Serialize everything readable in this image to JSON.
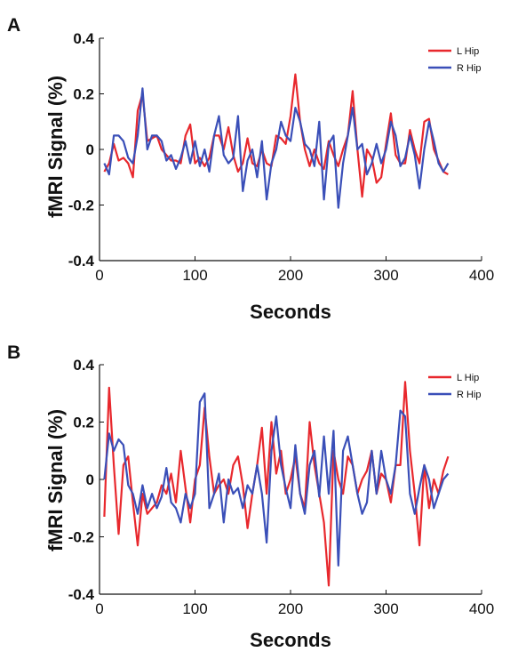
{
  "chart_data": [
    {
      "panel": "A",
      "type": "line",
      "xlabel": "Seconds",
      "ylabel": "fMRI Signal (%)",
      "xlim": [
        0,
        400
      ],
      "ylim": [
        -0.4,
        0.4
      ],
      "xticks": [
        "0",
        "100",
        "200",
        "300",
        "400"
      ],
      "yticks": [
        "-0.4",
        "-0.2",
        "0",
        "0.2",
        "0.4"
      ],
      "grid": false,
      "legend_position": "top-right",
      "x": [
        5,
        10,
        15,
        20,
        25,
        30,
        35,
        40,
        45,
        50,
        55,
        60,
        65,
        70,
        75,
        80,
        85,
        90,
        95,
        100,
        105,
        110,
        115,
        120,
        125,
        130,
        135,
        140,
        145,
        150,
        155,
        160,
        165,
        170,
        175,
        180,
        185,
        190,
        195,
        200,
        205,
        210,
        215,
        220,
        225,
        230,
        235,
        240,
        245,
        250,
        255,
        260,
        265,
        270,
        275,
        280,
        285,
        290,
        295,
        300,
        305,
        310,
        315,
        320,
        325,
        330,
        335,
        340,
        345,
        350,
        355,
        360,
        365
      ],
      "series": [
        {
          "name": "L Hip",
          "color": "#e8282d",
          "values": [
            -0.08,
            -0.05,
            0.02,
            -0.04,
            -0.03,
            -0.05,
            -0.1,
            0.14,
            0.2,
            0.03,
            0.04,
            0.05,
            0.0,
            -0.02,
            -0.04,
            -0.04,
            -0.05,
            0.05,
            0.09,
            -0.05,
            -0.03,
            -0.06,
            -0.03,
            0.05,
            0.05,
            0.0,
            0.08,
            -0.02,
            -0.08,
            -0.05,
            0.04,
            -0.05,
            -0.06,
            0.0,
            -0.05,
            -0.06,
            0.05,
            0.04,
            0.02,
            0.12,
            0.27,
            0.1,
            0.0,
            -0.06,
            0.0,
            -0.05,
            -0.07,
            0.03,
            -0.02,
            -0.06,
            0.0,
            0.05,
            0.21,
            0.0,
            -0.17,
            0.0,
            -0.03,
            -0.12,
            -0.1,
            0.02,
            0.13,
            -0.02,
            -0.05,
            -0.05,
            0.07,
            0.0,
            -0.05,
            0.1,
            0.11,
            0.0,
            -0.04,
            -0.08,
            -0.09
          ]
        },
        {
          "name": "R Hip",
          "color": "#3a4fb8",
          "values": [
            -0.05,
            -0.09,
            0.05,
            0.05,
            0.03,
            -0.03,
            -0.05,
            0.05,
            0.22,
            0.0,
            0.05,
            0.05,
            0.03,
            -0.04,
            -0.02,
            -0.07,
            -0.03,
            0.03,
            -0.05,
            0.03,
            -0.06,
            0.0,
            -0.08,
            0.05,
            0.12,
            -0.02,
            -0.05,
            -0.03,
            0.12,
            -0.15,
            -0.04,
            0.0,
            -0.1,
            0.03,
            -0.18,
            -0.05,
            0.0,
            0.1,
            0.05,
            0.03,
            0.15,
            0.1,
            0.02,
            0.0,
            -0.06,
            0.1,
            -0.18,
            0.02,
            0.05,
            -0.21,
            -0.05,
            0.05,
            0.15,
            0.0,
            0.02,
            -0.09,
            -0.05,
            0.02,
            -0.05,
            0.0,
            0.1,
            0.05,
            -0.06,
            -0.03,
            0.05,
            -0.02,
            -0.14,
            0.0,
            0.1,
            0.03,
            -0.05,
            -0.08,
            -0.05
          ]
        }
      ]
    },
    {
      "panel": "B",
      "type": "line",
      "xlabel": "Seconds",
      "ylabel": "fMRI Signal (%)",
      "xlim": [
        0,
        400
      ],
      "ylim": [
        -0.4,
        0.4
      ],
      "xticks": [
        "0",
        "100",
        "200",
        "300",
        "400"
      ],
      "yticks": [
        "-0.4",
        "-0.2",
        "0",
        "0.2",
        "0.4"
      ],
      "grid": false,
      "legend_position": "top-right",
      "x": [
        5,
        10,
        15,
        20,
        25,
        30,
        35,
        40,
        45,
        50,
        55,
        60,
        65,
        70,
        75,
        80,
        85,
        90,
        95,
        100,
        105,
        110,
        115,
        120,
        125,
        130,
        135,
        140,
        145,
        150,
        155,
        160,
        165,
        170,
        175,
        180,
        185,
        190,
        195,
        200,
        205,
        210,
        215,
        220,
        225,
        230,
        235,
        240,
        245,
        250,
        255,
        260,
        265,
        270,
        275,
        280,
        285,
        290,
        295,
        300,
        305,
        310,
        315,
        320,
        325,
        330,
        335,
        340,
        345,
        350,
        355,
        360,
        365
      ],
      "series": [
        {
          "name": "L Hip",
          "color": "#e8282d",
          "values": [
            -0.13,
            0.32,
            0.05,
            -0.19,
            0.05,
            0.08,
            -0.08,
            -0.23,
            -0.05,
            -0.12,
            -0.1,
            -0.08,
            -0.02,
            -0.05,
            0.02,
            -0.08,
            0.1,
            -0.03,
            -0.15,
            0.0,
            0.05,
            0.25,
            0.08,
            -0.05,
            -0.02,
            0.0,
            -0.05,
            0.05,
            0.08,
            -0.02,
            -0.17,
            -0.05,
            0.05,
            0.18,
            -0.05,
            0.2,
            0.02,
            0.1,
            -0.05,
            0.0,
            0.08,
            -0.05,
            -0.1,
            0.2,
            0.05,
            -0.05,
            -0.15,
            -0.37,
            0.1,
            0.0,
            -0.05,
            0.08,
            0.05,
            -0.05,
            0.0,
            0.03,
            0.1,
            -0.05,
            0.02,
            0.0,
            -0.08,
            0.05,
            0.05,
            0.34,
            0.1,
            -0.05,
            -0.23,
            0.05,
            -0.1,
            0.0,
            -0.05,
            0.03,
            0.08
          ]
        },
        {
          "name": "R Hip",
          "color": "#3a4fb8",
          "values": [
            0.0,
            0.16,
            0.1,
            0.14,
            0.12,
            -0.02,
            -0.05,
            -0.12,
            -0.02,
            -0.1,
            -0.05,
            -0.1,
            -0.06,
            0.04,
            -0.08,
            -0.1,
            -0.15,
            -0.05,
            -0.1,
            -0.05,
            0.27,
            0.3,
            -0.1,
            -0.05,
            0.02,
            -0.15,
            0.0,
            -0.05,
            -0.03,
            -0.1,
            -0.02,
            -0.05,
            0.05,
            -0.05,
            -0.22,
            0.1,
            0.22,
            0.05,
            -0.03,
            -0.1,
            0.12,
            -0.05,
            -0.12,
            0.05,
            0.1,
            -0.06,
            0.15,
            -0.05,
            0.17,
            -0.3,
            0.1,
            0.15,
            0.05,
            -0.05,
            -0.12,
            -0.08,
            0.1,
            -0.05,
            0.1,
            0.0,
            -0.05,
            0.05,
            0.24,
            0.22,
            -0.05,
            -0.12,
            -0.03,
            0.05,
            0.0,
            -0.1,
            -0.05,
            0.0,
            0.02
          ]
        }
      ]
    }
  ]
}
